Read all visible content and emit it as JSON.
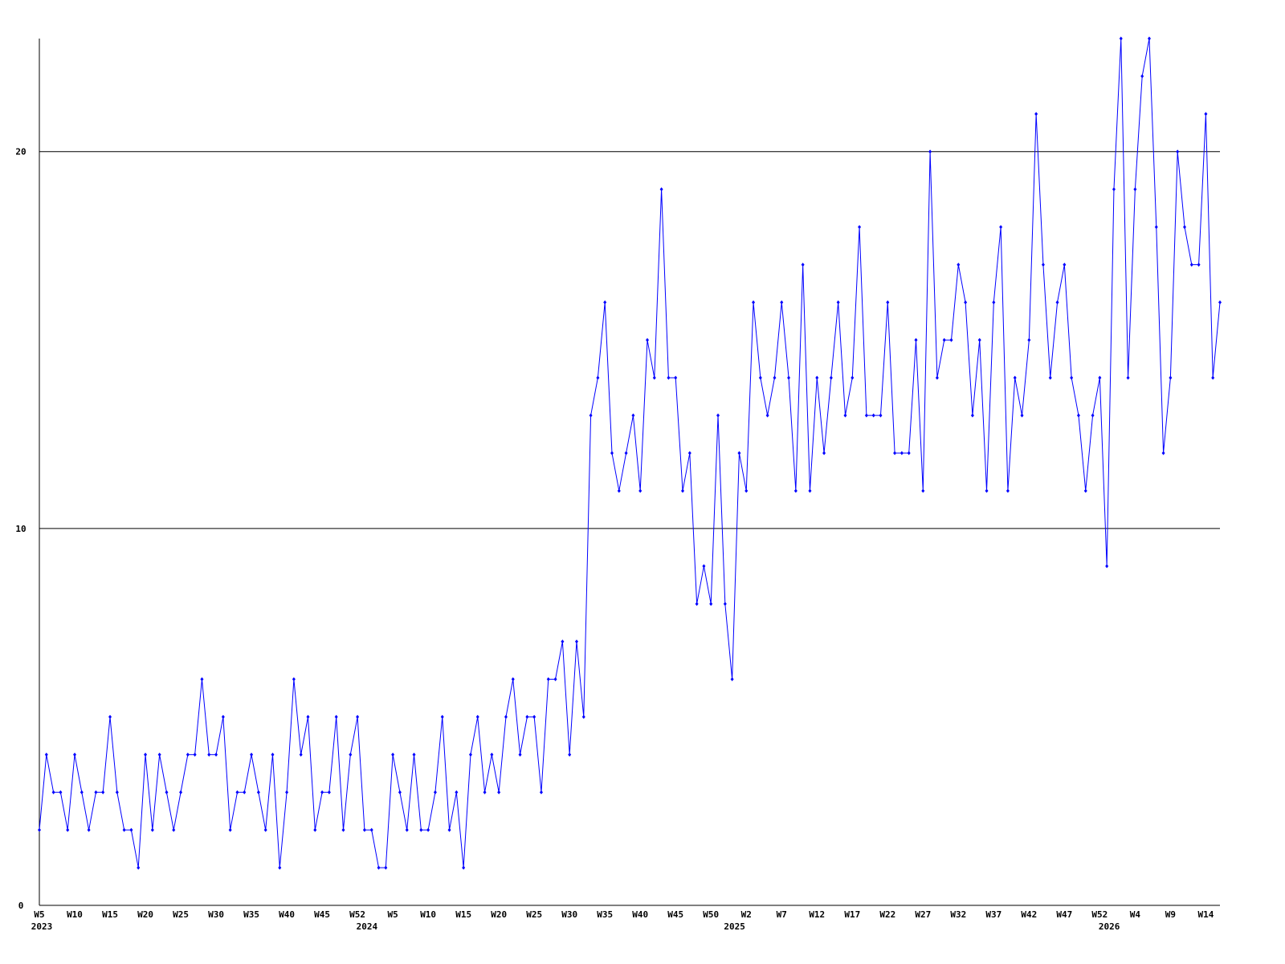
{
  "chart_data": {
    "type": "line",
    "categories": [
      "W5",
      null,
      null,
      null,
      null,
      "W10",
      null,
      null,
      null,
      null,
      "W15",
      null,
      null,
      null,
      null,
      "W20",
      null,
      null,
      null,
      null,
      "W25",
      null,
      null,
      null,
      null,
      "W30",
      null,
      null,
      null,
      null,
      "W35",
      null,
      null,
      null,
      null,
      "W40",
      null,
      null,
      null,
      null,
      "W45",
      null,
      null,
      null,
      null,
      "W52",
      null,
      null,
      null,
      null,
      "W5",
      null,
      null,
      null,
      null,
      "W10",
      null,
      null,
      null,
      null,
      "W15",
      null,
      null,
      null,
      null,
      "W20",
      null,
      null,
      null,
      null,
      "W25",
      null,
      null,
      null,
      null,
      "W30",
      null,
      null,
      null,
      null,
      "W35",
      null,
      null,
      null,
      null,
      "W40",
      null,
      null,
      null,
      null,
      "W45",
      null,
      null,
      null,
      null,
      "W50",
      null,
      null,
      null,
      null,
      "W2",
      null,
      null,
      null,
      null,
      "W7",
      null,
      null,
      null,
      null,
      "W12",
      null,
      null,
      null,
      null,
      "W17",
      null,
      null,
      null,
      null,
      "W22",
      null,
      null,
      null,
      null,
      "W27",
      null,
      null,
      null,
      null,
      "W32",
      null,
      null,
      null,
      null,
      "W37",
      null,
      null,
      null,
      null,
      "W42",
      null,
      null,
      null,
      null,
      "W47",
      null,
      null,
      null,
      null,
      "W52",
      null,
      null,
      null,
      null,
      "W4",
      null,
      null,
      null,
      null,
      "W9",
      null,
      null,
      null,
      null,
      "W14",
      null,
      null
    ],
    "x_groups": [
      {
        "label": "2023",
        "index": 0
      },
      {
        "label": "2024",
        "index": 46
      },
      {
        "label": "2025",
        "index": 98
      },
      {
        "label": "2026",
        "index": 151
      }
    ],
    "series": [
      {
        "color": "#0000ff",
        "values": [
          2,
          4,
          3,
          3,
          2,
          4,
          3,
          2,
          3,
          3,
          5,
          3,
          2,
          2,
          1,
          4,
          2,
          4,
          3,
          2,
          3,
          4,
          4,
          6,
          4,
          4,
          5,
          2,
          3,
          3,
          4,
          3,
          2,
          4,
          1,
          3,
          6,
          4,
          5,
          2,
          3,
          3,
          5,
          2,
          4,
          5,
          2,
          2,
          1,
          1,
          4,
          3,
          2,
          4,
          2,
          2,
          3,
          5,
          2,
          3,
          1,
          4,
          5,
          3,
          4,
          3,
          5,
          6,
          4,
          5,
          5,
          3,
          6,
          6,
          7,
          4,
          7,
          5,
          13,
          14,
          16,
          12,
          11,
          12,
          13,
          11,
          15,
          14,
          19,
          14,
          14,
          11,
          12,
          8,
          9,
          8,
          13,
          8,
          6,
          12,
          11,
          16,
          14,
          13,
          14,
          16,
          14,
          11,
          17,
          11,
          14,
          12,
          14,
          16,
          13,
          14,
          18,
          13,
          13,
          13,
          16,
          12,
          12,
          12,
          15,
          11,
          20,
          14,
          15,
          15,
          17,
          16,
          13,
          15,
          11,
          16,
          18,
          11,
          14,
          13,
          15,
          21,
          17,
          14,
          16,
          17,
          14,
          13,
          11,
          13,
          14,
          9,
          19,
          23,
          14,
          19,
          22,
          23,
          18,
          12,
          14,
          20,
          18,
          17,
          17,
          21,
          14,
          16
        ]
      }
    ],
    "ylim": [
      0,
      23
    ],
    "yticks": [
      0,
      10,
      20
    ],
    "grid": true
  }
}
